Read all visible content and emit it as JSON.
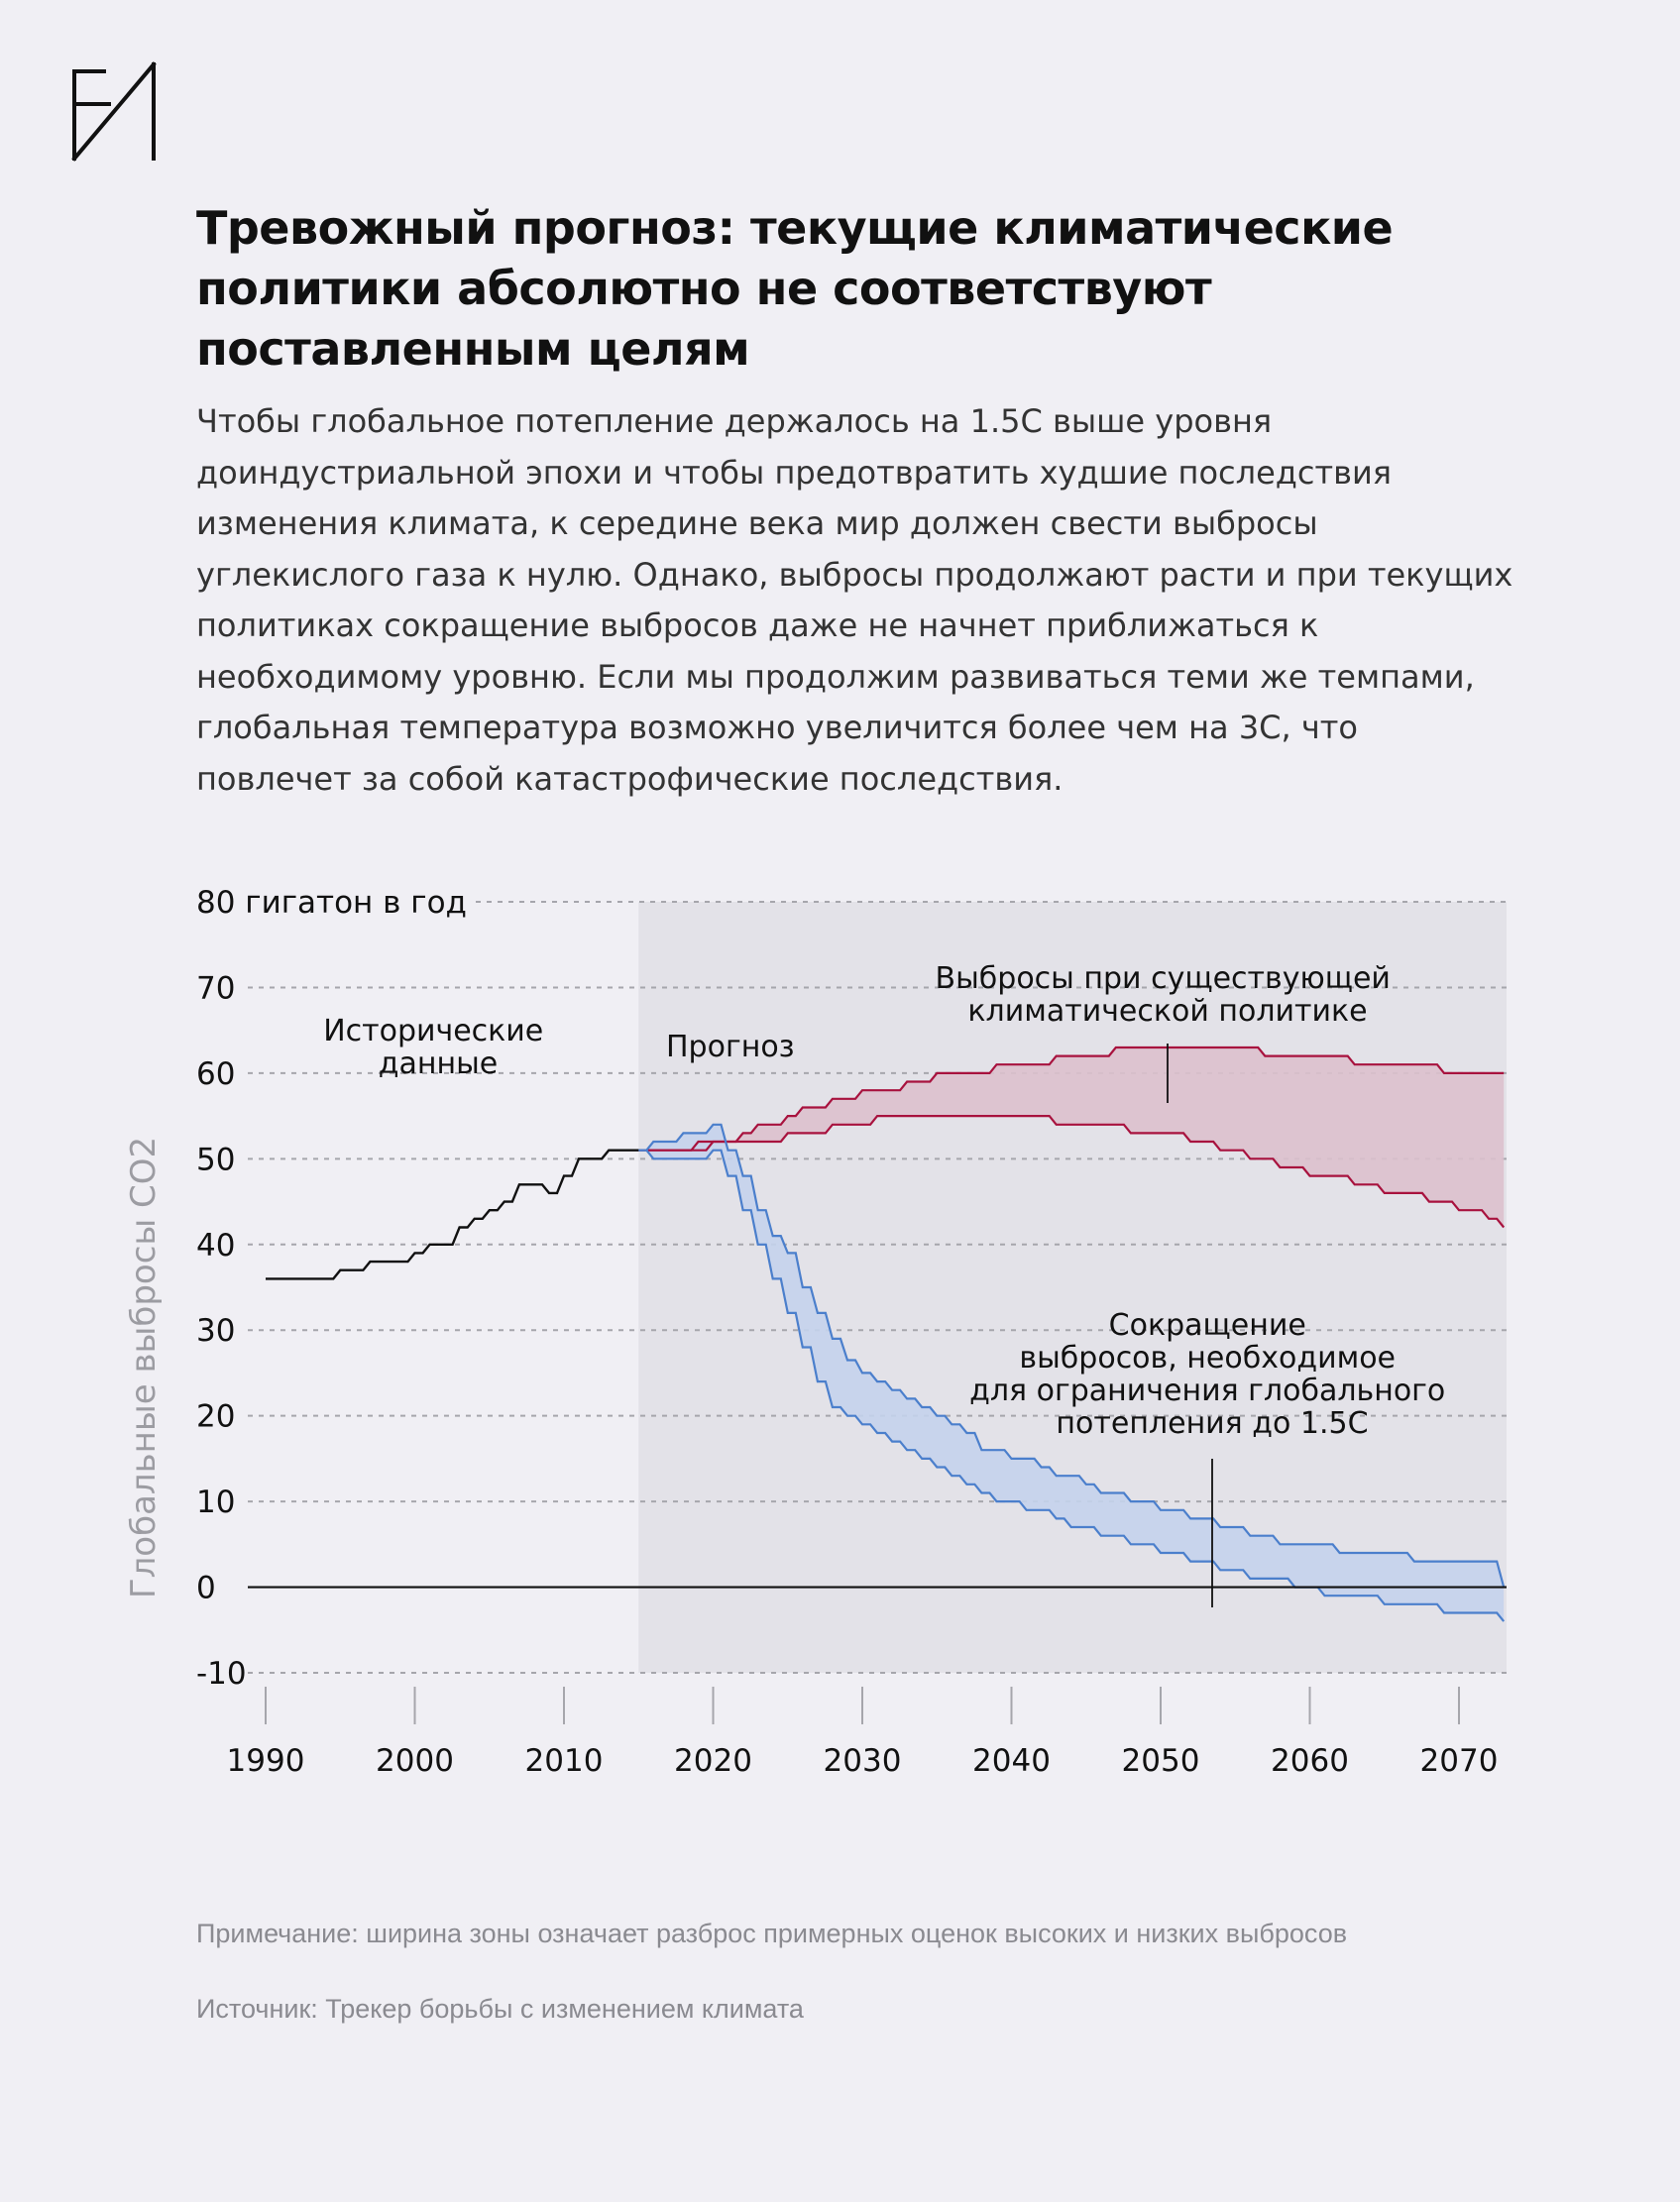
{
  "header": {
    "title": "Тревожный прогноз: текущие климатические политики абсолютно не соответствуют поставленным целям",
    "lead": "Чтобы глобальное потепление держалось на 1.5С выше уровня доиндустриальной эпохи и чтобы предотвратить худшие последствия изменения климата, к середине века мир должен свести выбросы углекислого газа к нулю. Однако, выбросы продолжают расти и при текущих политиках сокращение выбросов даже не начнет приближаться к необходимому уровню. Если мы продолжим развиваться теми же темпами, глобальная температура возможно увеличится более чем на 3С, что повлечет за собой катастрофические последствия."
  },
  "footer": {
    "note": "Примечание: ширина зоны означает разброс примерных оценок высоких и низких выбросов",
    "source": "Источник: Трекер борьбы с изменением климата"
  },
  "colors": {
    "background": "#f0eff4",
    "forecast_shade": "#e3e2e8",
    "history_line": "#111111",
    "policy_line": "#a8123e",
    "policy_fill": "#dcc1cd",
    "target_line": "#4b7fcc",
    "target_fill": "#c4d3ec",
    "grid": "#a6a6ac",
    "ylabel": "#9c9ca2"
  },
  "chart_data": {
    "type": "area",
    "ylabel": "Глобальные выбросы CO2",
    "top_tick_label": "80 гигатон в год",
    "ylim": [
      -10,
      80
    ],
    "xlim": [
      1990,
      2073
    ],
    "y_ticks": [
      80,
      70,
      60,
      50,
      40,
      30,
      20,
      10,
      0,
      -10
    ],
    "x_ticks": [
      1990,
      2000,
      2010,
      2020,
      2030,
      2040,
      2050,
      2060,
      2070
    ],
    "grid": "horizontal dashed",
    "forecast_start": 2015,
    "annotations": {
      "history": "Исторические данные",
      "forecast": "Прогноз",
      "policy": "Выбросы при существующей климатической политике",
      "target": "Сокращение выбросов, необходимое для ограничения глобального потепления до 1.5С"
    },
    "historical": {
      "x": [
        1990,
        1991,
        1992,
        1993,
        1994,
        1995,
        1996,
        1997,
        1998,
        1999,
        2000,
        2001,
        2002,
        2003,
        2004,
        2005,
        2006,
        2007,
        2008,
        2009,
        2010,
        2011,
        2012,
        2013,
        2014,
        2015
      ],
      "y": [
        36,
        36,
        36,
        36,
        36,
        37,
        37,
        38,
        38,
        38,
        39,
        40,
        40,
        42,
        43,
        44,
        45,
        47,
        47,
        46,
        48,
        50,
        50,
        51,
        51,
        51
      ]
    },
    "policy_range": {
      "x": [
        2015,
        2016,
        2017,
        2018,
        2019,
        2020,
        2021,
        2022,
        2023,
        2024,
        2025,
        2026,
        2027,
        2028,
        2029,
        2030,
        2031,
        2032,
        2033,
        2034,
        2035,
        2036,
        2037,
        2038,
        2039,
        2040,
        2041,
        2042,
        2043,
        2044,
        2045,
        2046,
        2047,
        2048,
        2049,
        2050,
        2051,
        2052,
        2053,
        2054,
        2055,
        2056,
        2057,
        2058,
        2059,
        2060,
        2061,
        2062,
        2063,
        2064,
        2065,
        2066,
        2067,
        2068,
        2069,
        2070,
        2071,
        2072,
        2073
      ],
      "high": [
        51,
        51,
        51,
        51,
        52,
        52,
        52,
        53,
        54,
        54,
        55,
        56,
        56,
        57,
        57,
        58,
        58,
        58,
        59,
        59,
        60,
        60,
        60,
        60,
        61,
        61,
        61,
        61,
        62,
        62,
        62,
        62,
        63,
        63,
        63,
        63,
        63,
        63,
        63,
        63,
        63,
        63,
        62,
        62,
        62,
        62,
        62,
        62,
        61,
        61,
        61,
        61,
        61,
        61,
        60,
        60,
        60,
        60,
        60
      ],
      "low": [
        51,
        51,
        51,
        51,
        51,
        52,
        52,
        52,
        52,
        52,
        53,
        53,
        53,
        54,
        54,
        54,
        55,
        55,
        55,
        55,
        55,
        55,
        55,
        55,
        55,
        55,
        55,
        55,
        54,
        54,
        54,
        54,
        54,
        53,
        53,
        53,
        53,
        52,
        52,
        51,
        51,
        50,
        50,
        49,
        49,
        48,
        48,
        48,
        47,
        47,
        46,
        46,
        46,
        45,
        45,
        44,
        44,
        43,
        42
      ]
    },
    "target_range": {
      "x": [
        2015,
        2016,
        2017,
        2018,
        2019,
        2020,
        2021,
        2022,
        2023,
        2024,
        2025,
        2026,
        2027,
        2028,
        2029,
        2030,
        2031,
        2032,
        2033,
        2034,
        2035,
        2036,
        2037,
        2038,
        2039,
        2040,
        2041,
        2042,
        2043,
        2044,
        2045,
        2046,
        2047,
        2048,
        2049,
        2050,
        2051,
        2052,
        2053,
        2054,
        2055,
        2056,
        2057,
        2058,
        2059,
        2060,
        2061,
        2062,
        2063,
        2064,
        2065,
        2066,
        2067,
        2068,
        2069,
        2070,
        2071,
        2072,
        2073
      ],
      "high": [
        51,
        52,
        52,
        53,
        53,
        54,
        51,
        48,
        44,
        41,
        39,
        35,
        32,
        29,
        26.5,
        25,
        24,
        23,
        22,
        21,
        20,
        19,
        18,
        16,
        16,
        15,
        15,
        14,
        13,
        13,
        12,
        11,
        11,
        10,
        10,
        9,
        9,
        8,
        8,
        7,
        7,
        6,
        6,
        5,
        5,
        5,
        5,
        4,
        4,
        4,
        4,
        4,
        3,
        3,
        3,
        3,
        3,
        3,
        0
      ],
      "low": [
        51,
        50,
        50,
        50,
        50,
        51,
        48,
        44,
        40,
        36,
        32,
        28,
        24,
        21,
        20,
        19,
        18,
        17,
        16,
        15,
        14,
        13,
        12,
        11,
        10,
        10,
        9,
        9,
        8,
        7,
        7,
        6,
        6,
        5,
        5,
        4,
        4,
        3,
        3,
        2,
        2,
        1,
        1,
        1,
        0,
        0,
        -1,
        -1,
        -1,
        -1,
        -2,
        -2,
        -2,
        -2,
        -3,
        -3,
        -3,
        -3,
        -4
      ]
    }
  }
}
